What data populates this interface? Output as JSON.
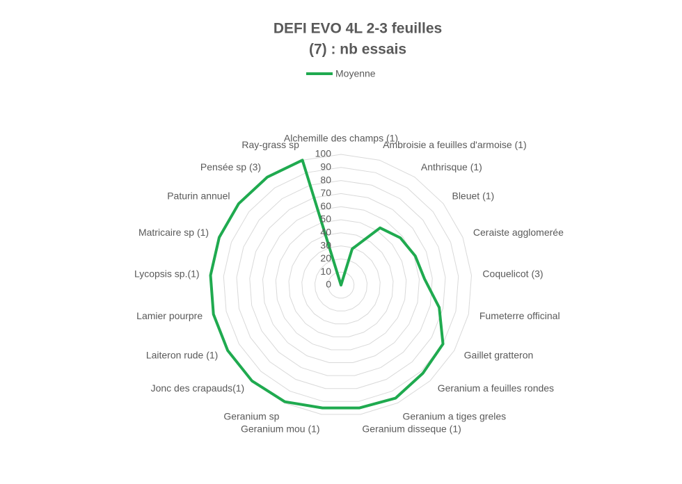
{
  "chart_data": {
    "type": "radar",
    "title": [
      "DEFI EVO 4L 2-3 feuilles",
      "(7) : nb essais"
    ],
    "categories": [
      "Alchemille des champs (1)",
      "Ambroisie a feuilles d'armoise (1)",
      "Anthrisque (1)",
      "Bleuet (1)",
      "Ceraiste agglomerée",
      "Coquelicot (3)",
      "Fumeterre officinal",
      "Gaillet gratteron",
      "Geranium a feuilles rondes",
      "Geranium a tiges greles",
      "Geranium disseque (1)",
      "Geranium mou (1)",
      "Geranium sp",
      "Jonc des crapauds(1)",
      "Laiteron rude (1)",
      "Lamier pourpre",
      "Lycopsis sp.(1)",
      "Matricaire sp (1)",
      "Paturin annuel",
      "Pensée sp (3)",
      "Ray-grass sp"
    ],
    "series": [
      {
        "name": "Moyenne",
        "color": "#1faa4f",
        "values": [
          0,
          29,
          53,
          58,
          61,
          64,
          77,
          90,
          92,
          96,
          95,
          95,
          99,
          100,
          100,
          100,
          100,
          100,
          100,
          100,
          100
        ]
      }
    ],
    "ylim": [
      0,
      100
    ],
    "yticks": [
      0,
      10,
      20,
      30,
      40,
      50,
      60,
      70,
      80,
      90,
      100
    ],
    "grid": true,
    "legend": "top"
  }
}
